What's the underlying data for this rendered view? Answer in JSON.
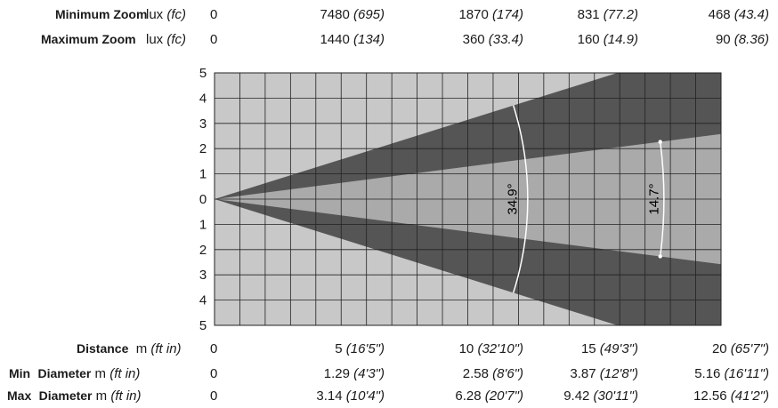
{
  "lux_rows": [
    {
      "label": "Minimum Zoom",
      "unit": "lux",
      "unit_alt": "(fc)",
      "values": [
        {
          "v": "0",
          "alt": ""
        },
        {
          "v": "7480",
          "alt": "(695)"
        },
        {
          "v": "1870",
          "alt": "(174)"
        },
        {
          "v": "831",
          "alt": "(77.2)"
        },
        {
          "v": "468",
          "alt": "(43.4)"
        }
      ]
    },
    {
      "label": "Maximum Zoom",
      "unit": "lux",
      "unit_alt": "(fc)",
      "values": [
        {
          "v": "0",
          "alt": ""
        },
        {
          "v": "1440",
          "alt": "(134)"
        },
        {
          "v": "360",
          "alt": "(33.4)"
        },
        {
          "v": "160",
          "alt": "(14.9)"
        },
        {
          "v": "90",
          "alt": "(8.36)"
        }
      ]
    }
  ],
  "y_ticks": [
    "5",
    "4",
    "3",
    "2",
    "1",
    "0",
    "1",
    "2",
    "3",
    "4",
    "5"
  ],
  "beams": {
    "wide_angle_label": "34.9°",
    "narrow_angle_label": "14.7°",
    "wide_angle_deg": 34.9,
    "narrow_angle_deg": 14.7,
    "wide_color": "#555555",
    "narrow_color": "#aaaaaa",
    "grid_bg": "#c8c8c8",
    "grid_line": "#222222"
  },
  "bottom_rows": [
    {
      "prefix": "",
      "label": "Distance",
      "unit": "m",
      "unit_alt": "(ft in)",
      "values": [
        {
          "v": "0",
          "alt": ""
        },
        {
          "v": "5",
          "alt": "(16'5\")"
        },
        {
          "v": "10",
          "alt": "(32'10\")"
        },
        {
          "v": "15",
          "alt": "(49'3\")"
        },
        {
          "v": "20",
          "alt": "(65'7\")"
        }
      ]
    },
    {
      "prefix": "Min",
      "label": "Diameter",
      "unit": "m",
      "unit_alt": "(ft in)",
      "values": [
        {
          "v": "0",
          "alt": ""
        },
        {
          "v": "1.29",
          "alt": "(4'3\")"
        },
        {
          "v": "2.58",
          "alt": "(8'6\")"
        },
        {
          "v": "3.87",
          "alt": "(12'8\")"
        },
        {
          "v": "5.16",
          "alt": "(16'11\")"
        }
      ]
    },
    {
      "prefix": "Max",
      "label": "Diameter",
      "unit": "m",
      "unit_alt": "(ft in)",
      "values": [
        {
          "v": "0",
          "alt": ""
        },
        {
          "v": "3.14",
          "alt": "(10'4\")"
        },
        {
          "v": "6.28",
          "alt": "(20'7\")"
        },
        {
          "v": "9.42",
          "alt": "(30'11\")"
        },
        {
          "v": "12.56",
          "alt": "(41'2\")"
        }
      ]
    }
  ]
}
